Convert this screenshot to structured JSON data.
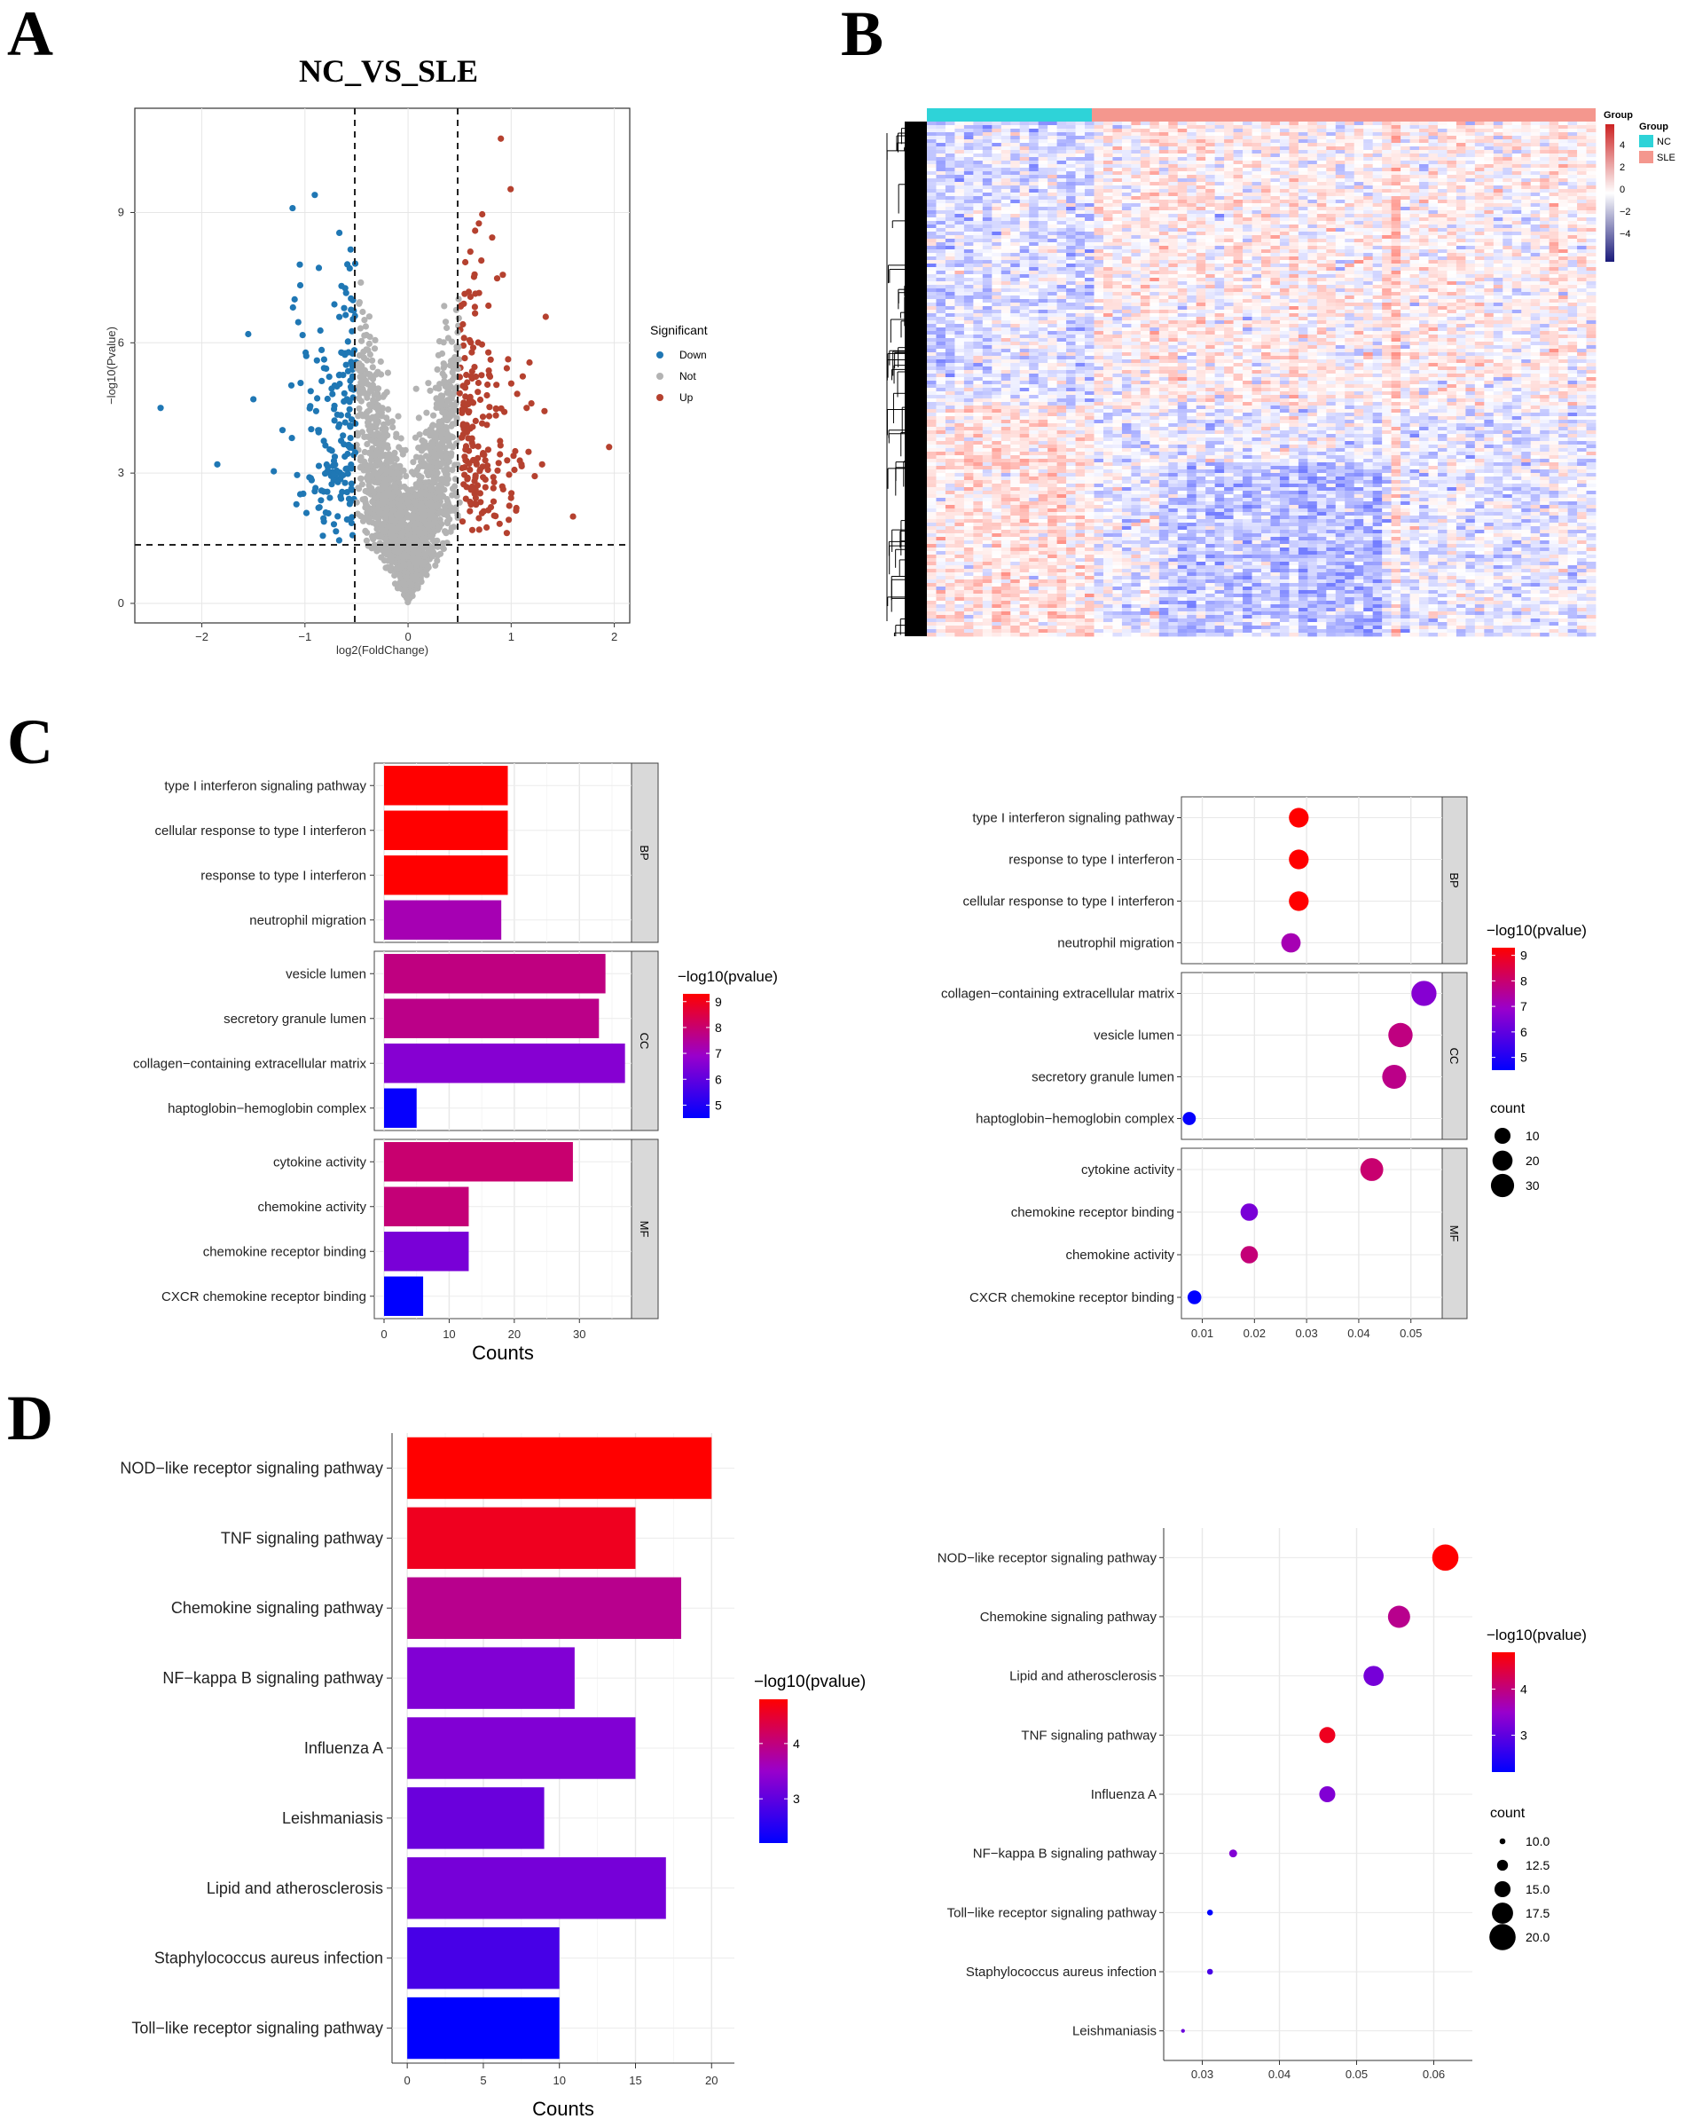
{
  "panels": {
    "A": "A",
    "B": "B",
    "C": "C",
    "D": "D"
  },
  "volcano": {
    "title": "NC_VS_SLE",
    "xlabel": "log2(FoldChange)",
    "ylabel": "−log10(Pvalue)",
    "xticks": [
      "−2",
      "−1",
      "0",
      "1",
      "2"
    ],
    "yticks": [
      "0",
      "3",
      "6",
      "9"
    ],
    "legend_title": "Significant",
    "legend": [
      {
        "label": "Down",
        "color": "#1f77b4"
      },
      {
        "label": "Not",
        "color": "#b3b3b3"
      },
      {
        "label": "Up",
        "color": "#b5412f"
      }
    ]
  },
  "heatmap": {
    "legend_title": "Group",
    "scale_ticks": [
      "4",
      "2",
      "0",
      "−2",
      "−4"
    ],
    "groups": [
      {
        "label": "NC",
        "color": "#2ed3d8"
      },
      {
        "label": "SLE",
        "color": "#f4978e"
      }
    ]
  },
  "colors": {
    "low": "#0000ff",
    "mid": "#9900cc",
    "high": "#ff0000"
  },
  "chart_data": [
    {
      "id": "C_bar",
      "type": "bar",
      "orientation": "horizontal",
      "xlabel": "Counts",
      "xlim": [
        0,
        38
      ],
      "xticks": [
        "0",
        "10",
        "20",
        "30"
      ],
      "legend_title": "−log10(pvalue)",
      "legend_ticks": [
        "9",
        "8",
        "7",
        "6",
        "5"
      ],
      "color_range": [
        4.5,
        9.3
      ],
      "facets": [
        {
          "label": "BP",
          "categories": [
            "type I interferon signaling pathway",
            "cellular response to type I interferon",
            "response to type I interferon",
            "neutrophil migration"
          ],
          "values": [
            19,
            19,
            19,
            18
          ],
          "color_values": [
            9.3,
            9.3,
            9.3,
            7.2
          ]
        },
        {
          "label": "CC",
          "categories": [
            "vesicle lumen",
            "secretory granule lumen",
            "collagen−containing extracellular matrix",
            "haptoglobin−hemoglobin complex"
          ],
          "values": [
            34,
            33,
            37,
            5
          ],
          "color_values": [
            7.8,
            7.7,
            6.6,
            4.6
          ]
        },
        {
          "label": "MF",
          "categories": [
            "cytokine activity",
            "chemokine activity",
            "chemokine receptor binding",
            "CXCR chemokine receptor binding"
          ],
          "values": [
            29,
            13,
            13,
            6
          ],
          "color_values": [
            8.0,
            7.9,
            6.4,
            4.5
          ]
        }
      ]
    },
    {
      "id": "C_dot",
      "type": "scatter",
      "xlim": [
        0.006,
        0.056
      ],
      "xticks": [
        "0.01",
        "0.02",
        "0.03",
        "0.04",
        "0.05"
      ],
      "legend_title": "−log10(pvalue)",
      "legend_ticks": [
        "9",
        "8",
        "7",
        "6",
        "5"
      ],
      "color_range": [
        4.5,
        9.3
      ],
      "size_title": "count",
      "size_legend": [
        "10",
        "20",
        "30"
      ],
      "facets": [
        {
          "label": "BP",
          "categories": [
            "type I interferon signaling pathway",
            "response to type I interferon",
            "cellular response to type I interferon",
            "neutrophil migration"
          ],
          "x": [
            0.0285,
            0.0285,
            0.0285,
            0.027
          ],
          "count": [
            19,
            19,
            19,
            18
          ],
          "color_values": [
            9.3,
            9.3,
            9.3,
            7.2
          ]
        },
        {
          "label": "CC",
          "categories": [
            "collagen−containing extracellular matrix",
            "vesicle lumen",
            "secretory granule lumen",
            "haptoglobin−hemoglobin complex"
          ],
          "x": [
            0.0525,
            0.048,
            0.0468,
            0.0075
          ],
          "count": [
            37,
            34,
            33,
            5
          ],
          "color_values": [
            6.6,
            7.8,
            7.7,
            4.6
          ]
        },
        {
          "label": "MF",
          "categories": [
            "cytokine activity",
            "chemokine receptor binding",
            "chemokine activity",
            "CXCR chemokine receptor binding"
          ],
          "x": [
            0.0425,
            0.019,
            0.019,
            0.0085
          ],
          "count": [
            29,
            13,
            13,
            6
          ],
          "color_values": [
            8.0,
            6.4,
            7.9,
            4.5
          ]
        }
      ]
    },
    {
      "id": "D_bar",
      "type": "bar",
      "orientation": "horizontal",
      "xlabel": "Counts",
      "xlim": [
        -1,
        21.5
      ],
      "xticks": [
        "0",
        "5",
        "10",
        "15",
        "20"
      ],
      "legend_title": "−log10(pvalue)",
      "legend_ticks": [
        "4",
        "3"
      ],
      "color_range": [
        2.2,
        4.8
      ],
      "categories": [
        "NOD−like receptor signaling pathway",
        "TNF signaling pathway",
        "Chemokine signaling pathway",
        "NF−kappa B signaling pathway",
        "Influenza A",
        "Leishmaniasis",
        "Lipid and atherosclerosis",
        "Staphylococcus aureus infection",
        "Toll−like receptor signaling pathway"
      ],
      "values": [
        20,
        15,
        18,
        11,
        15,
        9,
        17,
        10,
        10
      ],
      "color_values": [
        4.8,
        4.6,
        3.9,
        3.3,
        3.3,
        3.1,
        3.2,
        2.8,
        2.2
      ]
    },
    {
      "id": "D_dot",
      "type": "scatter",
      "xlim": [
        0.025,
        0.065
      ],
      "xticks": [
        "0.03",
        "0.04",
        "0.05",
        "0.06"
      ],
      "legend_title": "−log10(pvalue)",
      "legend_ticks": [
        "4",
        "3"
      ],
      "color_range": [
        2.2,
        4.8
      ],
      "size_title": "count",
      "size_legend": [
        "10.0",
        "12.5",
        "15.0",
        "17.5",
        "20.0"
      ],
      "categories": [
        "NOD−like receptor signaling pathway",
        "Chemokine signaling pathway",
        "Lipid and atherosclerosis",
        "TNF signaling pathway",
        "Influenza A",
        "NF−kappa B signaling pathway",
        "Toll−like receptor signaling pathway",
        "Staphylococcus aureus infection",
        "Leishmaniasis"
      ],
      "x": [
        0.0615,
        0.0555,
        0.0522,
        0.0462,
        0.0462,
        0.034,
        0.031,
        0.031,
        0.0275
      ],
      "count": [
        20,
        18,
        17,
        15,
        15,
        11,
        10,
        10,
        9
      ],
      "color_values": [
        4.8,
        3.9,
        3.2,
        4.6,
        3.3,
        3.3,
        2.2,
        2.8,
        3.1
      ]
    }
  ]
}
